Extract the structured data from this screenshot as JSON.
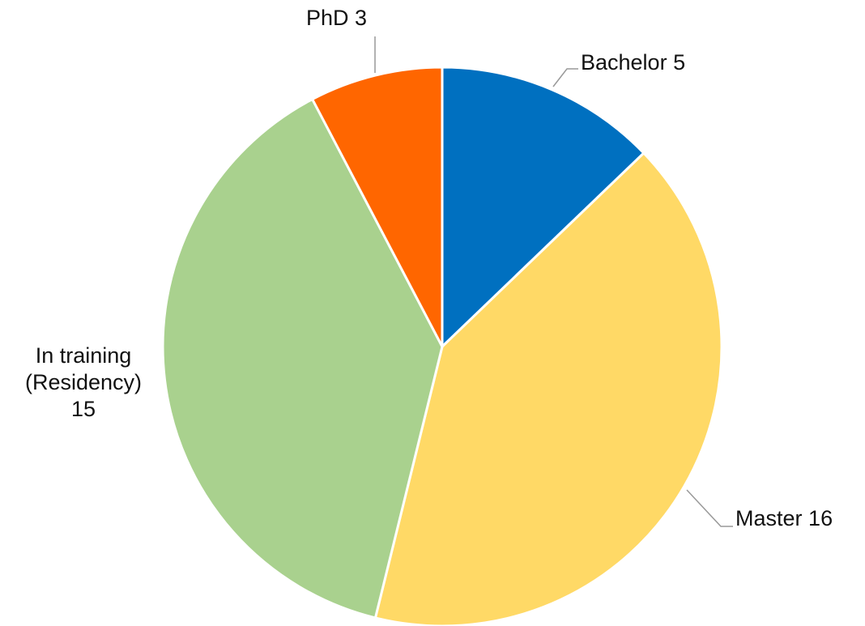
{
  "chart_data": {
    "type": "pie",
    "categories": [
      "Bachelor",
      "Master",
      "In training (Residency)",
      "PhD"
    ],
    "values": [
      5,
      16,
      15,
      3
    ],
    "colors": [
      "#0070c0",
      "#ffd966",
      "#a9d18e",
      "#ff6600"
    ]
  }
}
